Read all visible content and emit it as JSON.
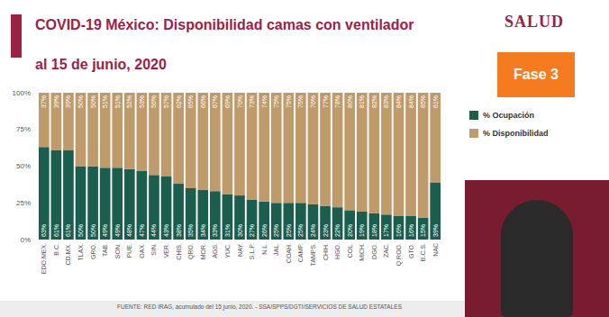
{
  "chart_data": {
    "type": "bar",
    "title": "COVID-19 México: Disponibilidad camas con ventilador",
    "subtitle": "al 15 de junio, 2020",
    "annotations": [
      "SALUD",
      "Fase 3",
      "FUENTE: RED IRAG, acumulado del 15 junio, 2020. - SSA/SPPS/DGTI/SERVICIOS DE SALUD ESTATALES"
    ],
    "categories": [
      "EDO.MEX.",
      "B.C.",
      "CD.MX.",
      "TLAX.",
      "GRO.",
      "TAB.",
      "SON.",
      "PUE.",
      "OAX.",
      "SIN.",
      "VER.",
      "CHIS.",
      "QRO.",
      "MOR.",
      "AGS.",
      "YUC.",
      "NAY.",
      "S.L.P.",
      "N.L.",
      "JAL.",
      "COAH.",
      "CAMP.",
      "TAMPS.",
      "CHIH.",
      "HGO.",
      "COL.",
      "MICH.",
      "DGO.",
      "ZAC.",
      "Q.ROO.",
      "GTO.",
      "B.C.S.",
      "NAC"
    ],
    "series": [
      {
        "name": "% Ocupación",
        "color": "#1b5e4e",
        "values": [
          63,
          61,
          61,
          50,
          50,
          49,
          49,
          48,
          47,
          44,
          43,
          38,
          35,
          34,
          33,
          31,
          30,
          27,
          26,
          25,
          25,
          25,
          24,
          23,
          22,
          20,
          19,
          18,
          17,
          16,
          16,
          15,
          39
        ],
        "value_labels": [
          "63%",
          "61%",
          "61%",
          "50%",
          "50%",
          "49%",
          "49%",
          "48%",
          "47%",
          "44%",
          "43%",
          "38%",
          "35%",
          "34%",
          "33%",
          "31%",
          "30%",
          "27%",
          "26%",
          "25%",
          "25%",
          "25%",
          "24%",
          "23%",
          "22%",
          "20%",
          "19%",
          "18%",
          "17%",
          "16%",
          "16%",
          "15%",
          "39%"
        ]
      },
      {
        "name": "% Disponibilidad",
        "color": "#bf9a6a",
        "values": [
          37,
          39,
          39,
          50,
          50,
          51,
          51,
          52,
          53,
          56,
          57,
          62,
          65,
          66,
          67,
          69,
          70,
          73,
          74,
          75,
          75,
          75,
          76,
          77,
          78,
          80,
          81,
          82,
          83,
          84,
          84,
          85,
          61
        ],
        "value_labels": [
          "37%",
          "39%",
          "39%",
          "50%",
          "50%",
          "51%",
          "51%",
          "52%",
          "53%",
          "56%",
          "57%",
          "62%",
          "65%",
          "66%",
          "67%",
          "69%",
          "70%",
          "73%",
          "74%",
          "75%",
          "75%",
          "75%",
          "76%",
          "77%",
          "78%",
          "80%",
          "81%",
          "82%",
          "83%",
          "84%",
          "84%",
          "85%",
          "61%"
        ]
      }
    ],
    "stacked": true,
    "data_labels": true,
    "legend": "right",
    "grid": false,
    "ylim": [
      0,
      100
    ],
    "yticks": [
      {
        "value": 0,
        "label": "0%"
      },
      {
        "value": 25,
        "label": "25%"
      },
      {
        "value": 50,
        "label": "50%"
      },
      {
        "value": 75,
        "label": "75%"
      },
      {
        "value": 100,
        "label": "100%"
      }
    ]
  }
}
